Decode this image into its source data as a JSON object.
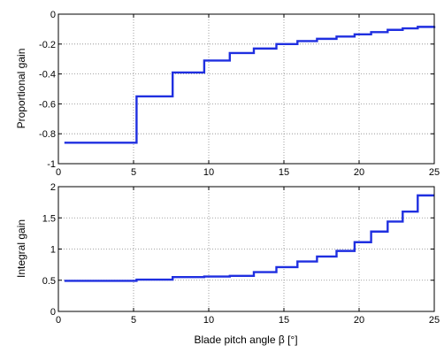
{
  "chart_data": [
    {
      "type": "line",
      "step": true,
      "title": "",
      "xlabel": "",
      "ylabel": "Proportional gain",
      "xlim": [
        0,
        25
      ],
      "ylim": [
        -1,
        0
      ],
      "x_ticks": [
        "0",
        "5",
        "10",
        "15",
        "20",
        "25"
      ],
      "y_ticks": [
        "-1",
        "-0.8",
        "-0.6",
        "-0.4",
        "-0.2",
        "0"
      ],
      "grid": true,
      "series": [
        {
          "color": "#1f2fe0",
          "x": [
            0.4,
            5.2,
            7.6,
            9.7,
            11.4,
            13.0,
            14.5,
            15.9,
            17.2,
            18.5,
            19.7,
            20.8,
            21.9,
            22.9,
            23.9,
            25.0
          ],
          "y": [
            -0.86,
            -0.55,
            -0.39,
            -0.31,
            -0.26,
            -0.23,
            -0.2,
            -0.18,
            -0.165,
            -0.15,
            -0.135,
            -0.12,
            -0.105,
            -0.095,
            -0.085,
            -0.08
          ]
        }
      ]
    },
    {
      "type": "line",
      "step": true,
      "title": "",
      "xlabel": "Blade pitch angle β [°]",
      "ylabel": "Integral gain",
      "xlim": [
        0,
        25
      ],
      "ylim": [
        0,
        2
      ],
      "x_ticks": [
        "0",
        "5",
        "10",
        "15",
        "20",
        "25"
      ],
      "y_ticks": [
        "0",
        "0.5",
        "1",
        "1.5",
        "2"
      ],
      "grid": true,
      "series": [
        {
          "color": "#1f2fe0",
          "x": [
            0.4,
            5.2,
            7.6,
            9.7,
            11.4,
            13.0,
            14.5,
            15.9,
            17.2,
            18.5,
            19.7,
            20.8,
            21.9,
            22.9,
            23.9,
            25.0
          ],
          "y": [
            0.49,
            0.51,
            0.55,
            0.56,
            0.57,
            0.63,
            0.71,
            0.8,
            0.88,
            0.97,
            1.11,
            1.28,
            1.44,
            1.6,
            1.86,
            1.86
          ]
        }
      ]
    }
  ]
}
